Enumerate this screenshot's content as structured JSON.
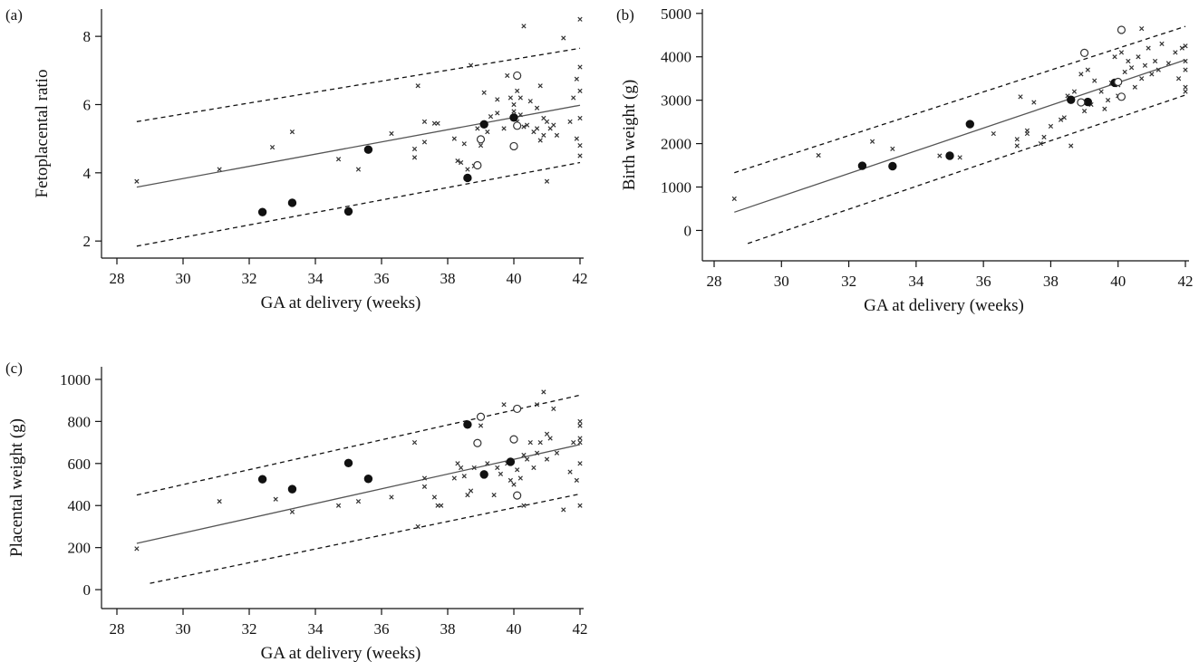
{
  "chart_data": [
    {
      "id": "a",
      "type": "scatter",
      "panel_label": "(a)",
      "xlabel": "GA at delivery (weeks)",
      "ylabel": "Fetoplacental ratio",
      "xlim": [
        28,
        42.1
      ],
      "ylim": [
        1.5,
        8.8
      ],
      "xticks": [
        28,
        30,
        32,
        34,
        36,
        38,
        40,
        42
      ],
      "yticks": [
        2,
        4,
        6,
        8
      ],
      "fit": {
        "x": [
          28.6,
          42
        ],
        "y": [
          3.58,
          5.98
        ]
      },
      "band_upper": {
        "x": [
          28.6,
          42
        ],
        "y": [
          5.5,
          7.65
        ]
      },
      "band_lower": {
        "x": [
          28.6,
          42
        ],
        "y": [
          1.85,
          4.3
        ]
      },
      "series": [
        {
          "marker": "x",
          "points": [
            [
              28.6,
              3.75
            ],
            [
              31.1,
              4.1
            ],
            [
              32.7,
              4.75
            ],
            [
              33.3,
              5.2
            ],
            [
              34.7,
              4.4
            ],
            [
              35.3,
              4.1
            ],
            [
              36.3,
              5.15
            ],
            [
              37.0,
              4.45
            ],
            [
              37.0,
              4.7
            ],
            [
              37.1,
              6.55
            ],
            [
              37.3,
              5.5
            ],
            [
              37.3,
              4.9
            ],
            [
              37.6,
              5.45
            ],
            [
              37.7,
              5.45
            ],
            [
              38.2,
              5.0
            ],
            [
              38.3,
              4.35
            ],
            [
              38.4,
              4.3
            ],
            [
              38.5,
              4.85
            ],
            [
              38.6,
              4.1
            ],
            [
              38.7,
              7.15
            ],
            [
              38.8,
              4.2
            ],
            [
              38.9,
              5.3
            ],
            [
              39.0,
              4.8
            ],
            [
              39.1,
              6.35
            ],
            [
              39.2,
              5.2
            ],
            [
              39.3,
              5.65
            ],
            [
              39.5,
              5.75
            ],
            [
              39.5,
              6.15
            ],
            [
              39.7,
              5.3
            ],
            [
              39.8,
              6.85
            ],
            [
              39.9,
              6.2
            ],
            [
              40.0,
              6.0
            ],
            [
              40.0,
              5.8
            ],
            [
              40.1,
              6.4
            ],
            [
              40.1,
              5.5
            ],
            [
              40.2,
              5.7
            ],
            [
              40.2,
              6.2
            ],
            [
              40.3,
              5.35
            ],
            [
              40.3,
              8.3
            ],
            [
              40.4,
              5.4
            ],
            [
              40.5,
              6.1
            ],
            [
              40.6,
              5.2
            ],
            [
              40.7,
              5.3
            ],
            [
              40.7,
              5.9
            ],
            [
              40.8,
              6.55
            ],
            [
              40.8,
              4.95
            ],
            [
              40.9,
              5.1
            ],
            [
              40.9,
              5.6
            ],
            [
              41.0,
              3.75
            ],
            [
              41.0,
              5.5
            ],
            [
              41.1,
              5.3
            ],
            [
              41.2,
              5.4
            ],
            [
              41.3,
              5.1
            ],
            [
              41.5,
              7.95
            ],
            [
              41.7,
              5.5
            ],
            [
              41.8,
              6.2
            ],
            [
              41.9,
              5.0
            ],
            [
              41.9,
              6.75
            ],
            [
              42.0,
              4.5
            ],
            [
              42.0,
              4.8
            ],
            [
              42.0,
              5.6
            ],
            [
              42.0,
              6.4
            ],
            [
              42.0,
              7.1
            ],
            [
              42.0,
              8.5
            ]
          ]
        },
        {
          "marker": "filled",
          "points": [
            [
              32.4,
              2.85
            ],
            [
              33.3,
              3.12
            ],
            [
              35.0,
              2.87
            ],
            [
              35.6,
              4.68
            ],
            [
              38.6,
              3.85
            ],
            [
              39.1,
              5.42
            ],
            [
              40.0,
              5.62
            ]
          ]
        },
        {
          "marker": "open",
          "points": [
            [
              38.9,
              4.22
            ],
            [
              39.0,
              4.98
            ],
            [
              40.0,
              4.78
            ],
            [
              40.1,
              6.85
            ],
            [
              40.1,
              5.38
            ]
          ]
        }
      ]
    },
    {
      "id": "b",
      "type": "scatter",
      "panel_label": "(b)",
      "xlabel": "GA at delivery (weeks)",
      "ylabel": "Birth weight (g)",
      "xlim": [
        28,
        42.1
      ],
      "ylim": [
        -700,
        5100
      ],
      "xticks": [
        28,
        30,
        32,
        34,
        36,
        38,
        40,
        42
      ],
      "yticks": [
        0,
        1000,
        2000,
        3000,
        4000,
        5000
      ],
      "fit": {
        "x": [
          28.6,
          42
        ],
        "y": [
          420,
          3930
        ]
      },
      "band_upper": {
        "x": [
          28.6,
          42
        ],
        "y": [
          1330,
          4700
        ]
      },
      "band_lower": {
        "x": [
          29.0,
          42
        ],
        "y": [
          -300,
          3120
        ]
      },
      "series": [
        {
          "marker": "x",
          "points": [
            [
              28.6,
              730
            ],
            [
              31.1,
              1730
            ],
            [
              32.7,
              2050
            ],
            [
              33.3,
              1880
            ],
            [
              34.7,
              1720
            ],
            [
              35.3,
              1680
            ],
            [
              36.3,
              2230
            ],
            [
              37.0,
              1950
            ],
            [
              37.0,
              2100
            ],
            [
              37.1,
              3080
            ],
            [
              37.3,
              2230
            ],
            [
              37.3,
              2300
            ],
            [
              37.5,
              2950
            ],
            [
              37.7,
              2000
            ],
            [
              37.8,
              2150
            ],
            [
              38.0,
              2400
            ],
            [
              38.3,
              2550
            ],
            [
              38.4,
              2600
            ],
            [
              38.5,
              3100
            ],
            [
              38.6,
              1950
            ],
            [
              38.7,
              3200
            ],
            [
              38.9,
              3600
            ],
            [
              39.0,
              2750
            ],
            [
              39.1,
              3700
            ],
            [
              39.2,
              2900
            ],
            [
              39.3,
              3450
            ],
            [
              39.5,
              3200
            ],
            [
              39.6,
              2800
            ],
            [
              39.7,
              3000
            ],
            [
              39.8,
              3400
            ],
            [
              39.9,
              4000
            ],
            [
              40.0,
              3100
            ],
            [
              40.0,
              3350
            ],
            [
              40.1,
              4100
            ],
            [
              40.2,
              3650
            ],
            [
              40.3,
              3900
            ],
            [
              40.4,
              3750
            ],
            [
              40.5,
              3300
            ],
            [
              40.6,
              4000
            ],
            [
              40.7,
              4650
            ],
            [
              40.7,
              3500
            ],
            [
              40.8,
              3800
            ],
            [
              40.9,
              4200
            ],
            [
              41.0,
              3600
            ],
            [
              41.1,
              3900
            ],
            [
              41.2,
              3700
            ],
            [
              41.3,
              4300
            ],
            [
              41.5,
              3850
            ],
            [
              41.7,
              4100
            ],
            [
              41.8,
              3500
            ],
            [
              41.9,
              4200
            ],
            [
              42.0,
              3300
            ],
            [
              42.0,
              3700
            ],
            [
              42.0,
              3900
            ],
            [
              42.0,
              4250
            ],
            [
              42.0,
              3200
            ]
          ]
        },
        {
          "marker": "filled",
          "points": [
            [
              32.4,
              1490
            ],
            [
              33.3,
              1480
            ],
            [
              35.0,
              1720
            ],
            [
              35.6,
              2450
            ],
            [
              38.6,
              3010
            ],
            [
              39.1,
              2960
            ],
            [
              39.9,
              3400
            ]
          ]
        },
        {
          "marker": "open",
          "points": [
            [
              38.9,
              2950
            ],
            [
              39.0,
              4090
            ],
            [
              40.0,
              3420
            ],
            [
              40.1,
              3080
            ],
            [
              40.1,
              4620
            ]
          ]
        }
      ]
    },
    {
      "id": "c",
      "type": "scatter",
      "panel_label": "(c)",
      "xlabel": "GA at delivery (weeks)",
      "ylabel": "Placental weight (g)",
      "xlim": [
        28,
        42.1
      ],
      "ylim": [
        -90,
        1060
      ],
      "xticks": [
        28,
        30,
        32,
        34,
        36,
        38,
        40,
        42
      ],
      "yticks": [
        0,
        200,
        400,
        600,
        800,
        1000
      ],
      "fit": {
        "x": [
          28.6,
          42
        ],
        "y": [
          220,
          690
        ]
      },
      "band_upper": {
        "x": [
          28.6,
          42
        ],
        "y": [
          450,
          925
        ]
      },
      "band_lower": {
        "x": [
          29.0,
          42
        ],
        "y": [
          30,
          455
        ]
      },
      "series": [
        {
          "marker": "x",
          "points": [
            [
              28.6,
              195
            ],
            [
              31.1,
              420
            ],
            [
              32.8,
              430
            ],
            [
              33.3,
              370
            ],
            [
              34.7,
              400
            ],
            [
              35.3,
              420
            ],
            [
              36.3,
              440
            ],
            [
              37.0,
              700
            ],
            [
              37.1,
              300
            ],
            [
              37.3,
              490
            ],
            [
              37.3,
              530
            ],
            [
              37.6,
              440
            ],
            [
              37.7,
              400
            ],
            [
              37.8,
              400
            ],
            [
              38.2,
              530
            ],
            [
              38.3,
              600
            ],
            [
              38.4,
              580
            ],
            [
              38.5,
              540
            ],
            [
              38.6,
              450
            ],
            [
              38.7,
              470
            ],
            [
              38.8,
              580
            ],
            [
              39.0,
              780
            ],
            [
              39.1,
              540
            ],
            [
              39.2,
              600
            ],
            [
              39.4,
              450
            ],
            [
              39.5,
              580
            ],
            [
              39.6,
              550
            ],
            [
              39.7,
              880
            ],
            [
              39.8,
              600
            ],
            [
              39.9,
              520
            ],
            [
              40.0,
              500
            ],
            [
              40.1,
              570
            ],
            [
              40.2,
              530
            ],
            [
              40.3,
              400
            ],
            [
              40.3,
              640
            ],
            [
              40.4,
              620
            ],
            [
              40.5,
              700
            ],
            [
              40.6,
              580
            ],
            [
              40.7,
              880
            ],
            [
              40.7,
              650
            ],
            [
              40.8,
              700
            ],
            [
              40.9,
              940
            ],
            [
              41.0,
              740
            ],
            [
              41.0,
              620
            ],
            [
              41.1,
              720
            ],
            [
              41.2,
              860
            ],
            [
              41.3,
              650
            ],
            [
              41.5,
              380
            ],
            [
              41.7,
              560
            ],
            [
              41.8,
              700
            ],
            [
              41.9,
              520
            ],
            [
              42.0,
              400
            ],
            [
              42.0,
              600
            ],
            [
              42.0,
              720
            ],
            [
              42.0,
              780
            ],
            [
              42.0,
              800
            ],
            [
              42.0,
              700
            ]
          ]
        },
        {
          "marker": "filled",
          "points": [
            [
              32.4,
              525
            ],
            [
              33.3,
              478
            ],
            [
              35.0,
              602
            ],
            [
              35.6,
              527
            ],
            [
              38.6,
              785
            ],
            [
              39.1,
              548
            ],
            [
              39.9,
              608
            ]
          ]
        },
        {
          "marker": "open",
          "points": [
            [
              38.9,
              697
            ],
            [
              39.0,
              822
            ],
            [
              40.0,
              715
            ],
            [
              40.1,
              860
            ],
            [
              40.1,
              448
            ]
          ]
        }
      ]
    }
  ]
}
